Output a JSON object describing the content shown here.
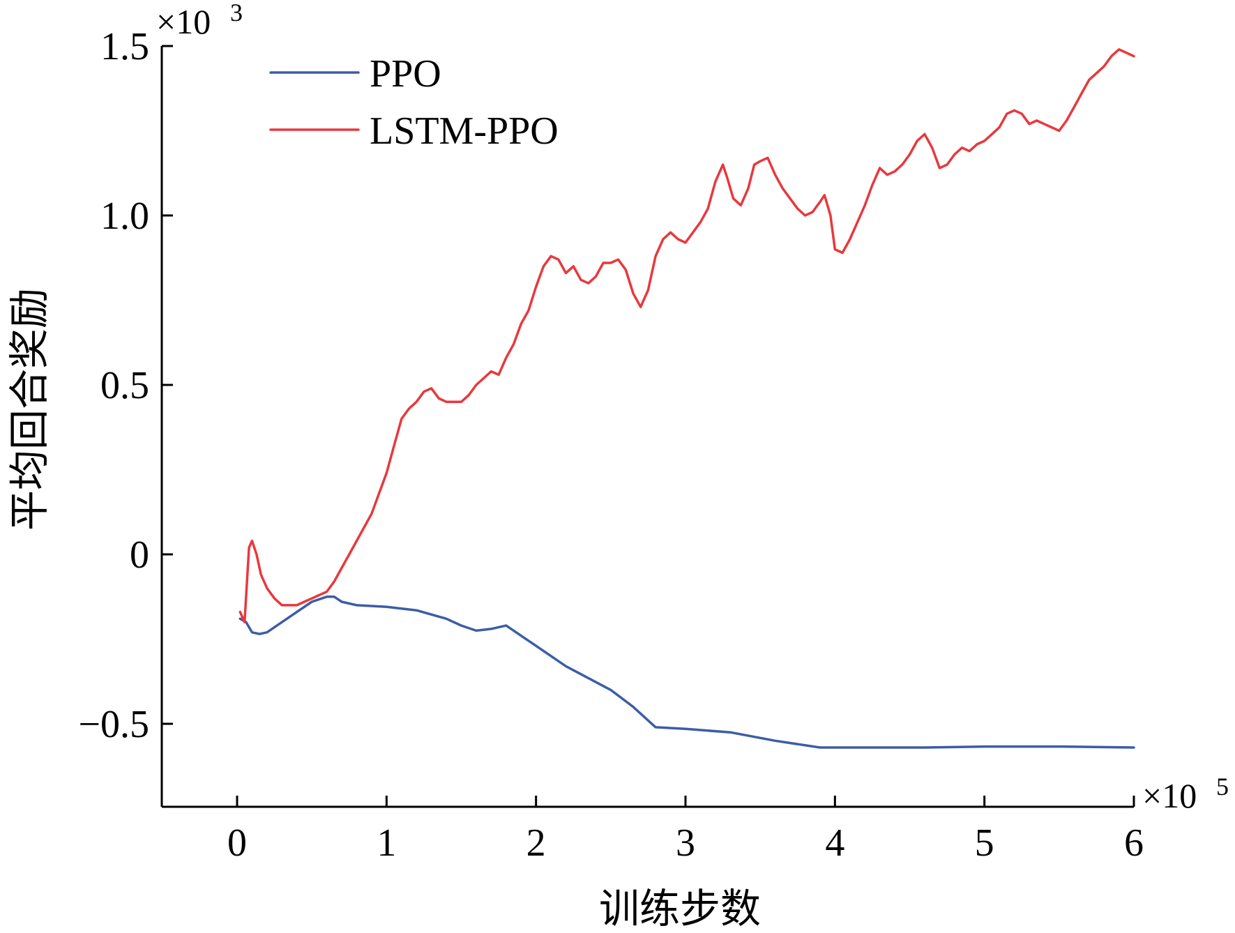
{
  "chart_data": {
    "type": "line",
    "xlabel": "训练步数",
    "ylabel": "平均回合奖励",
    "x_multiplier": "×10",
    "x_multiplier_exp": "5",
    "y_multiplier": "×10",
    "y_multiplier_exp": "3",
    "xlim": [
      -0.5,
      6
    ],
    "ylim": [
      -0.75,
      1.5
    ],
    "x_ticks": [
      0,
      1,
      2,
      3,
      4,
      5,
      6
    ],
    "x_tick_labels": [
      "0",
      "1",
      "2",
      "3",
      "4",
      "5",
      "6"
    ],
    "y_ticks": [
      -0.5,
      0,
      0.5,
      1.0,
      1.5
    ],
    "y_tick_labels": [
      "−0.5",
      "0",
      "0.5",
      "1.0",
      "1.5"
    ],
    "legend_position": "top-left",
    "grid": false,
    "series": [
      {
        "name": "PPO",
        "color": "#3b5da8",
        "x": [
          0.02,
          0.06,
          0.1,
          0.15,
          0.2,
          0.3,
          0.4,
          0.5,
          0.6,
          0.65,
          0.7,
          0.8,
          1.0,
          1.2,
          1.4,
          1.5,
          1.6,
          1.7,
          1.8,
          2.0,
          2.2,
          2.5,
          2.65,
          2.8,
          3.0,
          3.3,
          3.6,
          3.9,
          4.2,
          4.6,
          5.0,
          5.5,
          6.0
        ],
        "y": [
          -0.19,
          -0.2,
          -0.23,
          -0.235,
          -0.23,
          -0.2,
          -0.17,
          -0.14,
          -0.125,
          -0.125,
          -0.14,
          -0.15,
          -0.155,
          -0.165,
          -0.19,
          -0.21,
          -0.225,
          -0.22,
          -0.21,
          -0.27,
          -0.33,
          -0.4,
          -0.45,
          -0.51,
          -0.515,
          -0.525,
          -0.55,
          -0.57,
          -0.57,
          -0.57,
          -0.567,
          -0.567,
          -0.57
        ]
      },
      {
        "name": "LSTM-PPO",
        "color": "#e8383d",
        "x": [
          0.02,
          0.05,
          0.08,
          0.1,
          0.13,
          0.16,
          0.2,
          0.25,
          0.3,
          0.35,
          0.4,
          0.45,
          0.5,
          0.55,
          0.6,
          0.65,
          0.7,
          0.75,
          0.8,
          0.85,
          0.9,
          0.95,
          1.0,
          1.05,
          1.1,
          1.15,
          1.2,
          1.25,
          1.3,
          1.35,
          1.4,
          1.45,
          1.5,
          1.55,
          1.6,
          1.65,
          1.7,
          1.75,
          1.8,
          1.85,
          1.9,
          1.95,
          2.0,
          2.05,
          2.1,
          2.15,
          2.2,
          2.25,
          2.3,
          2.35,
          2.4,
          2.45,
          2.5,
          2.55,
          2.6,
          2.65,
          2.7,
          2.75,
          2.8,
          2.85,
          2.9,
          2.95,
          3.0,
          3.05,
          3.1,
          3.15,
          3.2,
          3.25,
          3.28,
          3.32,
          3.37,
          3.42,
          3.46,
          3.5,
          3.55,
          3.6,
          3.65,
          3.7,
          3.75,
          3.8,
          3.85,
          3.9,
          3.93,
          3.97,
          4.0,
          4.05,
          4.1,
          4.15,
          4.2,
          4.25,
          4.3,
          4.35,
          4.4,
          4.45,
          4.5,
          4.55,
          4.6,
          4.65,
          4.7,
          4.75,
          4.8,
          4.85,
          4.9,
          4.95,
          5.0,
          5.05,
          5.1,
          5.15,
          5.2,
          5.25,
          5.3,
          5.35,
          5.4,
          5.45,
          5.5,
          5.55,
          5.6,
          5.65,
          5.7,
          5.75,
          5.8,
          5.85,
          5.9,
          5.95,
          6.0
        ],
        "y": [
          -0.17,
          -0.2,
          0.02,
          0.04,
          0.0,
          -0.06,
          -0.1,
          -0.13,
          -0.15,
          -0.15,
          -0.15,
          -0.14,
          -0.13,
          -0.12,
          -0.11,
          -0.08,
          -0.04,
          0.0,
          0.04,
          0.08,
          0.12,
          0.18,
          0.24,
          0.32,
          0.4,
          0.43,
          0.45,
          0.48,
          0.49,
          0.46,
          0.45,
          0.45,
          0.45,
          0.47,
          0.5,
          0.52,
          0.54,
          0.53,
          0.58,
          0.62,
          0.68,
          0.72,
          0.79,
          0.85,
          0.88,
          0.87,
          0.83,
          0.85,
          0.81,
          0.8,
          0.82,
          0.86,
          0.86,
          0.87,
          0.84,
          0.77,
          0.73,
          0.78,
          0.88,
          0.93,
          0.95,
          0.93,
          0.92,
          0.95,
          0.98,
          1.02,
          1.1,
          1.15,
          1.11,
          1.05,
          1.03,
          1.08,
          1.15,
          1.16,
          1.17,
          1.12,
          1.08,
          1.05,
          1.02,
          1.0,
          1.01,
          1.04,
          1.06,
          1.0,
          0.9,
          0.89,
          0.93,
          0.98,
          1.03,
          1.09,
          1.14,
          1.12,
          1.13,
          1.15,
          1.18,
          1.22,
          1.24,
          1.2,
          1.14,
          1.15,
          1.18,
          1.2,
          1.19,
          1.21,
          1.22,
          1.24,
          1.26,
          1.3,
          1.31,
          1.3,
          1.27,
          1.28,
          1.27,
          1.26,
          1.25,
          1.28,
          1.32,
          1.36,
          1.4,
          1.42,
          1.44,
          1.47,
          1.49,
          1.48,
          1.47
        ]
      }
    ]
  }
}
